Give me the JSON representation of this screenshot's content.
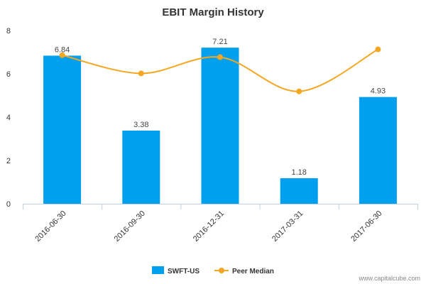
{
  "chart_data": {
    "type": "bar",
    "title": "EBIT Margin History",
    "xlabel": "",
    "ylabel": "",
    "categories": [
      "2016-06-30",
      "2016-09-30",
      "2016-12-31",
      "2017-03-31",
      "2017-06-30"
    ],
    "ylim": [
      0,
      8
    ],
    "yticks": [
      "0",
      "2",
      "4",
      "6",
      "8"
    ],
    "grid": false,
    "legend_position": "bottom-center",
    "series": [
      {
        "name": "SWFT-US",
        "kind": "bar",
        "color": "#00a0ee",
        "values": [
          6.84,
          3.38,
          7.21,
          1.18,
          4.93
        ],
        "labels": [
          "6.84",
          "3.38",
          "7.21",
          "1.18",
          "4.93"
        ]
      },
      {
        "name": "Peer Median",
        "kind": "line",
        "color": "#f5a623",
        "values": [
          6.86,
          6.02,
          6.77,
          5.19,
          7.13
        ]
      }
    ],
    "credit": "www.capitalcube.com"
  }
}
